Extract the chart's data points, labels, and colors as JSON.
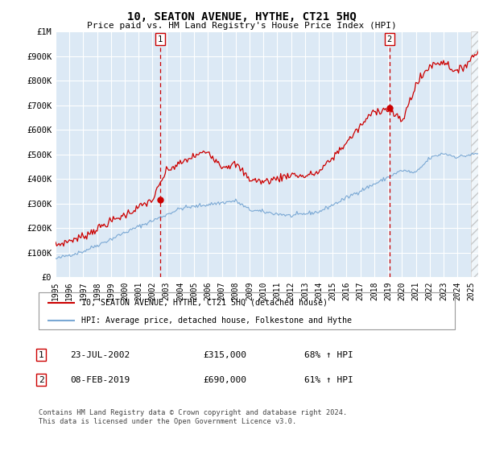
{
  "title": "10, SEATON AVENUE, HYTHE, CT21 5HQ",
  "subtitle": "Price paid vs. HM Land Registry's House Price Index (HPI)",
  "hpi_color": "#7aa8d4",
  "price_color": "#cc0000",
  "annotation1_date": 2002.55,
  "annotation1_price": 315000,
  "annotation2_date": 2019.1,
  "annotation2_price": 690000,
  "legend_line1": "10, SEATON AVENUE, HYTHE, CT21 5HQ (detached house)",
  "legend_line2": "HPI: Average price, detached house, Folkestone and Hythe",
  "table_row1": [
    "1",
    "23-JUL-2002",
    "£315,000",
    "68% ↑ HPI"
  ],
  "table_row2": [
    "2",
    "08-FEB-2019",
    "£690,000",
    "61% ↑ HPI"
  ],
  "footnote": "Contains HM Land Registry data © Crown copyright and database right 2024.\nThis data is licensed under the Open Government Licence v3.0.",
  "yticks": [
    0,
    100000,
    200000,
    300000,
    400000,
    500000,
    600000,
    700000,
    800000,
    900000,
    1000000
  ],
  "ytick_labels": [
    "£0",
    "£100K",
    "£200K",
    "£300K",
    "£400K",
    "£500K",
    "£600K",
    "£700K",
    "£800K",
    "£900K",
    "£1M"
  ],
  "xtick_years": [
    1995,
    1996,
    1997,
    1998,
    1999,
    2000,
    2001,
    2002,
    2003,
    2004,
    2005,
    2006,
    2007,
    2008,
    2009,
    2010,
    2011,
    2012,
    2013,
    2014,
    2015,
    2016,
    2017,
    2018,
    2019,
    2020,
    2021,
    2022,
    2023,
    2024,
    2025
  ],
  "plot_bg_color": "#dce9f5",
  "fig_bg_color": "#ffffff",
  "ylim_max": 1000000,
  "xlim_start": 1995.0,
  "xlim_end": 2025.5
}
